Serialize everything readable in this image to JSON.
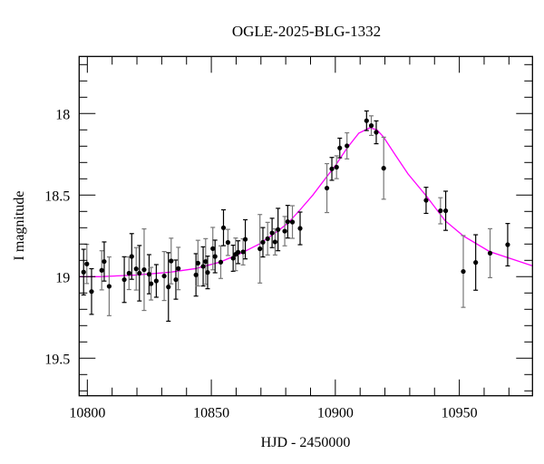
{
  "chart_data": {
    "type": "scatter",
    "title": "OGLE-2025-BLG-1332",
    "xlabel": "HJD - 2450000",
    "ylabel": "I magnitude",
    "xlim": [
      10796.7,
      10979.5
    ],
    "ylim": [
      19.73,
      17.65
    ],
    "y_inverted": true,
    "x_ticks": [
      10800,
      10850,
      10900,
      10950
    ],
    "x_tick_labels": [
      "10800",
      "10850",
      "10900",
      "10950"
    ],
    "x_minor_step": 10,
    "y_ticks": [
      18,
      18.5,
      19,
      19.5
    ],
    "y_tick_labels": [
      "18",
      "18.5",
      "19",
      "19.5"
    ],
    "y_minor_step": 0.1,
    "grid": false,
    "colors": {
      "points": "#000000",
      "errorbar_dark": "#000000",
      "errorbar_gray": "#777777",
      "model": "#ff00ff"
    },
    "observations": {
      "x": [
        10798.5,
        10799.8,
        10801.7,
        10805.8,
        10806.8,
        10808.8,
        10814.9,
        10816.8,
        10817.9,
        10819.7,
        10821.0,
        10822.9,
        10824.9,
        10825.7,
        10827.8,
        10831.0,
        10832.7,
        10833.8,
        10835.7,
        10836.7,
        10843.8,
        10844.6,
        10846.7,
        10847.7,
        10848.5,
        10850.6,
        10851.5,
        10853.8,
        10854.9,
        10856.7,
        10858.8,
        10859.8,
        10860.8,
        10862.8,
        10863.7,
        10869.6,
        10870.8,
        10872.7,
        10874.5,
        10875.7,
        10876.9,
        10879.6,
        10880.8,
        10882.7,
        10885.8,
        10896.6,
        10898.6,
        10900.5,
        10901.8,
        10904.7,
        10912.6,
        10914.5,
        10916.5,
        10919.5,
        10936.6,
        10942.4,
        10944.5,
        10951.6,
        10956.6,
        10962.4,
        10969.5
      ],
      "y": [
        18.972,
        18.922,
        19.091,
        18.961,
        18.907,
        19.059,
        19.018,
        18.979,
        18.876,
        18.952,
        18.979,
        18.957,
        18.985,
        19.043,
        19.026,
        18.996,
        19.063,
        18.904,
        19.018,
        18.95,
        18.989,
        18.917,
        18.937,
        18.907,
        18.974,
        18.828,
        18.876,
        18.911,
        18.7,
        18.79,
        18.887,
        18.863,
        18.85,
        18.848,
        18.771,
        18.829,
        18.789,
        18.767,
        18.732,
        18.787,
        18.711,
        18.721,
        18.663,
        18.665,
        18.704,
        18.457,
        18.339,
        18.329,
        18.211,
        18.198,
        18.044,
        18.074,
        18.115,
        18.335,
        18.532,
        18.596,
        18.596,
        18.968,
        18.913,
        18.856,
        18.804
      ],
      "yerr": [
        0.14,
        0.12,
        0.14,
        0.12,
        0.12,
        0.18,
        0.14,
        0.1,
        0.14,
        0.13,
        0.17,
        0.25,
        0.12,
        0.1,
        0.1,
        0.15,
        0.21,
        0.14,
        0.12,
        0.13,
        0.13,
        0.14,
        0.12,
        0.14,
        0.1,
        0.13,
        0.1,
        0.1,
        0.11,
        0.08,
        0.08,
        0.1,
        0.07,
        0.08,
        0.12,
        0.21,
        0.09,
        0.1,
        0.09,
        0.08,
        0.13,
        0.09,
        0.1,
        0.1,
        0.1,
        0.15,
        0.07,
        0.07,
        0.06,
        0.08,
        0.06,
        0.06,
        0.07,
        0.19,
        0.08,
        0.08,
        0.12,
        0.22,
        0.17,
        0.15,
        0.13
      ]
    },
    "model": {
      "type": "line",
      "x": [
        10796.7,
        10805,
        10819.6,
        10833.5,
        10843.8,
        10853.6,
        10862,
        10869.3,
        10876.3,
        10881,
        10885.8,
        10890.9,
        10896.4,
        10900,
        10904.8,
        10909.5,
        10913.9,
        10916.8,
        10919.4,
        10924.2,
        10929.3,
        10936.6,
        10944.3,
        10951.6,
        10962.2,
        10979.4
      ],
      "y": [
        19.0,
        19.0,
        18.99,
        18.972,
        18.95,
        18.91,
        18.856,
        18.8,
        18.726,
        18.67,
        18.59,
        18.5,
        18.39,
        18.32,
        18.21,
        18.12,
        18.087,
        18.1,
        18.143,
        18.254,
        18.37,
        18.504,
        18.657,
        18.75,
        18.846,
        18.933
      ]
    }
  }
}
